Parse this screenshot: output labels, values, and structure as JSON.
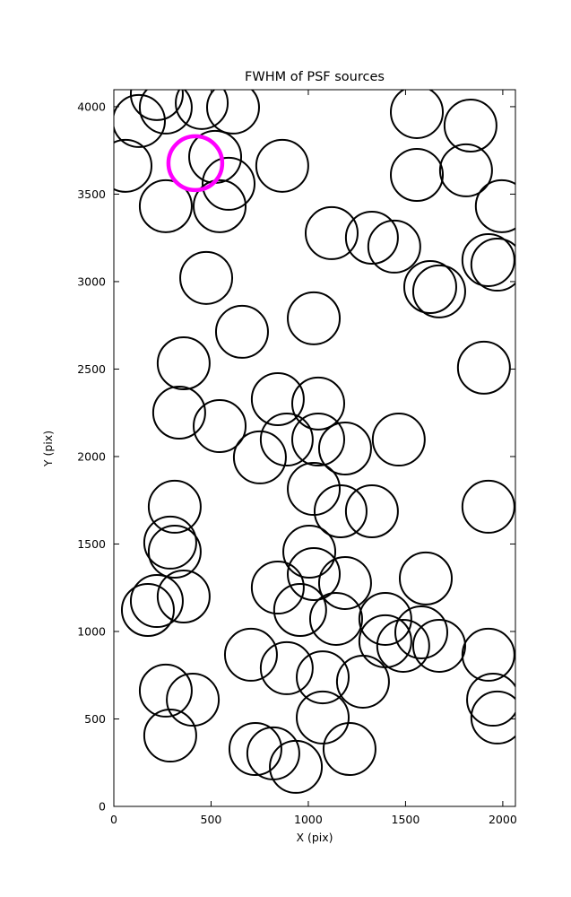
{
  "chart_data": {
    "type": "scatter",
    "title": "FWHM of PSF sources",
    "xlabel": "X (pix)",
    "ylabel": "Y (pix)",
    "xlim": [
      0,
      2065
    ],
    "ylim": [
      0,
      4097
    ],
    "xticks": [
      0,
      500,
      1000,
      1500,
      2000
    ],
    "yticks": [
      0,
      500,
      1000,
      1500,
      2000,
      2500,
      3000,
      3500,
      4000
    ],
    "grid": false,
    "legend": "none",
    "style": {
      "background": "#ffffff",
      "axis_color": "#000000",
      "tick_direction": "in"
    },
    "marker": {
      "shape": "circle",
      "radius_px": 29,
      "fill": "none",
      "stroke": "#000000",
      "stroke_width": 2
    },
    "highlight": {
      "x": 419,
      "y": 3677,
      "radius_px": 30,
      "stroke": "#ff00ff",
      "stroke_width": 4.5,
      "meaning": "selected PSF source"
    },
    "points": [
      [
        129,
        3918
      ],
      [
        267,
        3995
      ],
      [
        221,
        4072
      ],
      [
        452,
        4021
      ],
      [
        613,
        3995
      ],
      [
        60,
        3662
      ],
      [
        521,
        3713
      ],
      [
        590,
        3559
      ],
      [
        866,
        3662
      ],
      [
        267,
        3431
      ],
      [
        544,
        3431
      ],
      [
        1558,
        3969
      ],
      [
        1834,
        3892
      ],
      [
        1811,
        3636
      ],
      [
        1558,
        3610
      ],
      [
        1995,
        3431
      ],
      [
        1120,
        3277
      ],
      [
        1327,
        3251
      ],
      [
        1442,
        3200
      ],
      [
        1926,
        3123
      ],
      [
        1972,
        3097
      ],
      [
        475,
        3021
      ],
      [
        1627,
        2969
      ],
      [
        1673,
        2944
      ],
      [
        659,
        2713
      ],
      [
        1028,
        2790
      ],
      [
        1903,
        2508
      ],
      [
        359,
        2533
      ],
      [
        336,
        2251
      ],
      [
        544,
        2174
      ],
      [
        843,
        2328
      ],
      [
        1051,
        2303
      ],
      [
        889,
        2097
      ],
      [
        1051,
        2097
      ],
      [
        751,
        1995
      ],
      [
        1189,
        2046
      ],
      [
        1465,
        2097
      ],
      [
        1028,
        1815
      ],
      [
        1166,
        1687
      ],
      [
        1327,
        1687
      ],
      [
        1926,
        1713
      ],
      [
        313,
        1713
      ],
      [
        290,
        1508
      ],
      [
        313,
        1456
      ],
      [
        1005,
        1456
      ],
      [
        1028,
        1328
      ],
      [
        843,
        1251
      ],
      [
        1189,
        1277
      ],
      [
        221,
        1174
      ],
      [
        175,
        1123
      ],
      [
        359,
        1200
      ],
      [
        958,
        1123
      ],
      [
        1143,
        1072
      ],
      [
        1396,
        1072
      ],
      [
        1604,
        1303
      ],
      [
        1581,
        995
      ],
      [
        1396,
        944
      ],
      [
        1488,
        918
      ],
      [
        1673,
        918
      ],
      [
        1926,
        867
      ],
      [
        705,
        867
      ],
      [
        889,
        790
      ],
      [
        1074,
        738
      ],
      [
        1281,
        713
      ],
      [
        267,
        662
      ],
      [
        406,
        610
      ],
      [
        290,
        405
      ],
      [
        728,
        328
      ],
      [
        820,
        303
      ],
      [
        936,
        226
      ],
      [
        1212,
        328
      ],
      [
        1074,
        508
      ],
      [
        1950,
        610
      ],
      [
        1972,
        508
      ]
    ]
  }
}
